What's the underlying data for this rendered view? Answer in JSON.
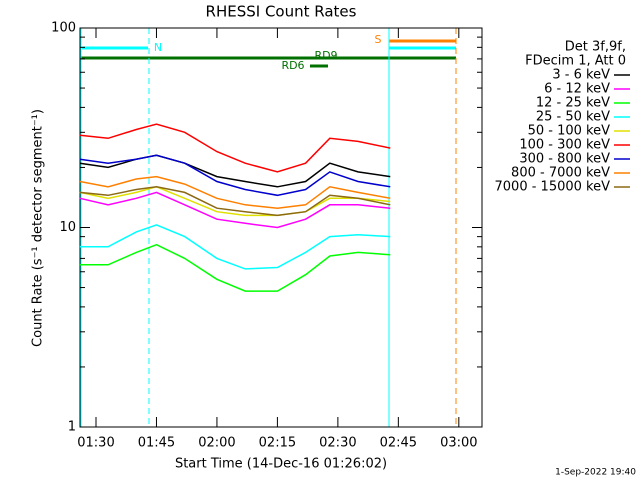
{
  "chart_data": {
    "type": "line",
    "title": "RHESSI Count Rates",
    "x_label": "Start Time (14-Dec-16 01:26:02)",
    "y_label": "Count Rate (s⁻¹ detector segment⁻¹)",
    "legend_header": [
      "Det 3f,9f,",
      "FDecim 1, Att 0"
    ],
    "footer": "1-Sep-2022 19:40",
    "annotations": [
      "N",
      "RD9",
      "RD6",
      "S"
    ],
    "log_y": true,
    "x": [
      "01:26",
      "01:33",
      "01:40",
      "01:45",
      "01:52",
      "02:00",
      "02:07",
      "02:15",
      "02:22",
      "02:28",
      "02:35",
      "02:43"
    ],
    "xlim": [
      "01:26:02",
      "03:05:45"
    ],
    "xticks": [
      "01:30",
      "01:45",
      "02:00",
      "02:15",
      "02:30",
      "02:45",
      "03:00"
    ],
    "ylim": [
      1,
      100
    ],
    "yticks": [
      1,
      10,
      100
    ],
    "series": [
      {
        "name": "3 - 6 keV",
        "color": "#000000",
        "values": [
          21,
          20,
          22,
          23,
          21,
          18,
          17,
          16,
          17,
          21,
          19,
          18
        ]
      },
      {
        "name": "6 - 12 keV",
        "color": "#ff00ff",
        "values": [
          14,
          13,
          14,
          15,
          13,
          11,
          10.5,
          10,
          11,
          13,
          13,
          12.5
        ]
      },
      {
        "name": "12 - 25 keV",
        "color": "#00ff00",
        "values": [
          6.5,
          6.5,
          7.5,
          8.2,
          7,
          5.5,
          4.8,
          4.8,
          5.8,
          7.2,
          7.5,
          7.3
        ]
      },
      {
        "name": "25 - 50 keV",
        "color": "#00ffff",
        "values": [
          8,
          8,
          9.5,
          10.3,
          9,
          7,
          6.2,
          6.3,
          7.5,
          9,
          9.2,
          9
        ]
      },
      {
        "name": "50 - 100 keV",
        "color": "#e0e000",
        "values": [
          15,
          14,
          15,
          16,
          14,
          12,
          11.5,
          11.5,
          12,
          14,
          14,
          13.5
        ]
      },
      {
        "name": "100 - 300 keV",
        "color": "#ff0000",
        "values": [
          29,
          28,
          31,
          33,
          30,
          24,
          21,
          19,
          21,
          28,
          27,
          25
        ]
      },
      {
        "name": "300 - 800 keV",
        "color": "#0000cc",
        "values": [
          22,
          21,
          22,
          23,
          21,
          17,
          15.5,
          14.5,
          15.5,
          19,
          17,
          16
        ]
      },
      {
        "name": "800 - 7000 keV",
        "color": "#ff8000",
        "values": [
          17,
          16,
          17.5,
          18,
          16.5,
          14,
          13,
          12.5,
          13,
          16,
          15,
          14
        ]
      },
      {
        "name": "7000 - 15000 keV",
        "color": "#8b6914",
        "values": [
          15,
          14.5,
          15.5,
          16,
          15,
          12.5,
          12,
          11.5,
          12,
          14.5,
          14,
          13
        ]
      }
    ]
  }
}
